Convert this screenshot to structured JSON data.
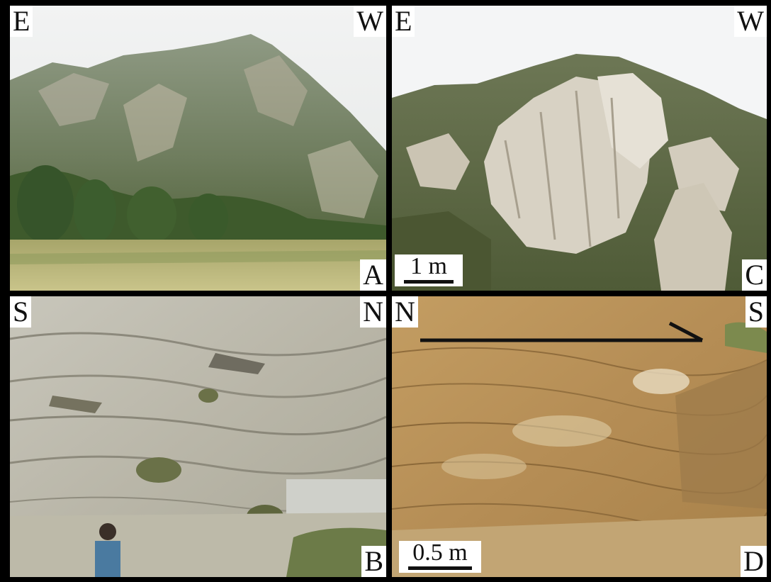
{
  "panels": {
    "A": {
      "label": "A",
      "left_dir": "E",
      "right_dir": "W"
    },
    "C": {
      "label": "C",
      "left_dir": "E",
      "right_dir": "W",
      "scale": "1 m"
    },
    "B": {
      "label": "B",
      "left_dir": "S",
      "right_dir": "N"
    },
    "D": {
      "label": "D",
      "left_dir": "N",
      "right_dir": "S",
      "scale": "0.5 m"
    }
  }
}
